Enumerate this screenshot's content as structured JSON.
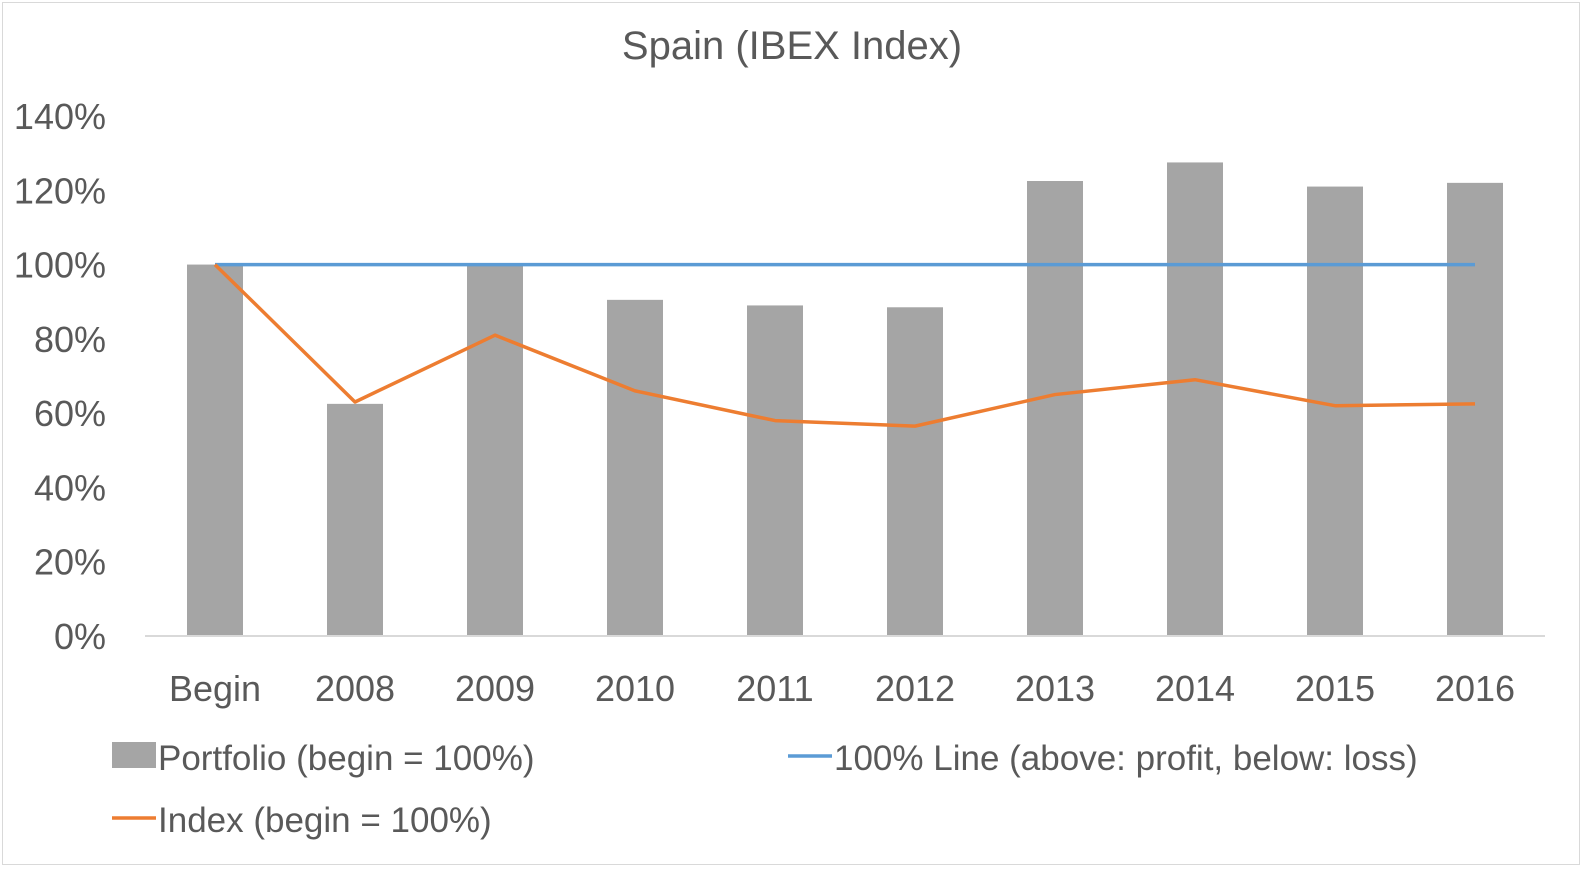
{
  "chart_data": {
    "type": "bar",
    "title": "Spain (IBEX Index)",
    "categories": [
      "Begin",
      "2008",
      "2009",
      "2010",
      "2011",
      "2012",
      "2013",
      "2014",
      "2015",
      "2016"
    ],
    "ylim": [
      0,
      1.4
    ],
    "yticks": [
      {
        "value": 0,
        "label": "0%"
      },
      {
        "value": 0.2,
        "label": "20%"
      },
      {
        "value": 0.4,
        "label": "40%"
      },
      {
        "value": 0.6,
        "label": "60%"
      },
      {
        "value": 0.8,
        "label": "80%"
      },
      {
        "value": 1.0,
        "label": "100%"
      },
      {
        "value": 1.2,
        "label": "120%"
      },
      {
        "value": 1.4,
        "label": "140%"
      }
    ],
    "grid": false,
    "legend_position": "bottom",
    "series": [
      {
        "name": "Portfolio (begin = 100%)",
        "type": "bar",
        "color": "#a5a5a5",
        "values": [
          1.0,
          0.625,
          1.0,
          0.905,
          0.89,
          0.885,
          1.225,
          1.275,
          1.21,
          1.22
        ]
      },
      {
        "name": "100% Line (above: profit, below: loss)",
        "type": "line",
        "color": "#5b9bd5",
        "values": [
          1.0,
          1.0,
          1.0,
          1.0,
          1.0,
          1.0,
          1.0,
          1.0,
          1.0,
          1.0
        ]
      },
      {
        "name": "Index (begin = 100%)",
        "type": "line",
        "color": "#ed7d31",
        "values": [
          1.0,
          0.63,
          0.81,
          0.66,
          0.58,
          0.565,
          0.65,
          0.69,
          0.62,
          0.625
        ]
      }
    ]
  }
}
